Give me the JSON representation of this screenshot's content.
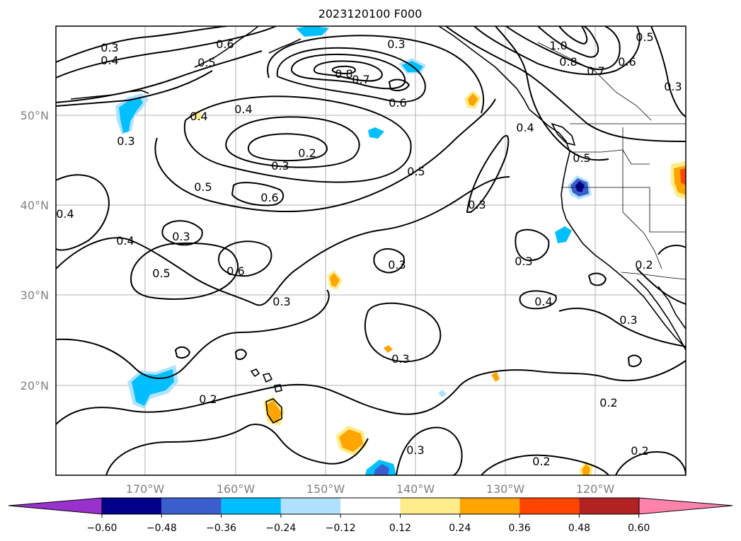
{
  "title": "2023120100 F000",
  "lat_labels": [
    {
      "id": "50n",
      "text": "50°N"
    },
    {
      "id": "40n",
      "text": "40°N"
    },
    {
      "id": "30n",
      "text": "30°N"
    },
    {
      "id": "20n",
      "text": "20°N"
    }
  ],
  "lon_labels": [
    {
      "id": "170w",
      "text": "170°W"
    },
    {
      "id": "160w",
      "text": "160°W"
    },
    {
      "id": "150w",
      "text": "150°W"
    },
    {
      "id": "140w",
      "text": "140°W"
    },
    {
      "id": "130w",
      "text": "130°W"
    },
    {
      "id": "120w",
      "text": "120°W"
    }
  ],
  "contour_labels": [
    "0.3",
    "0.4",
    "0.6",
    "0.5",
    "0.3",
    "0.8",
    "0.7",
    "0.6",
    "1.0",
    "0.8",
    "0.7",
    "0.6",
    "0.5",
    "0.3",
    "0.4",
    "0.4",
    "0.4",
    "0.3",
    "0.3",
    "0.2",
    "0.5",
    "0.5",
    "0.6",
    "0.3",
    "0.4",
    "0.3",
    "0.4",
    "0.5",
    "0.6",
    "0.5",
    "0.3",
    "0.3",
    "0.2",
    "0.4",
    "0.3",
    "0.3",
    "0.3",
    "0.2",
    "0.2",
    "0.3",
    "0.2",
    "0.2"
  ],
  "colorbar": {
    "ticks": [
      "−0.60",
      "−0.48",
      "−0.36",
      "−0.24",
      "−0.12",
      "0.12",
      "0.24",
      "0.36",
      "0.48",
      "0.60"
    ],
    "colors": {
      "under": "#9932cc",
      "bins": [
        "#00008b",
        "#3a5fcd",
        "#00bfff",
        "#b0e2ff",
        "#ffffff",
        "#ffec8b",
        "#ffa500",
        "#ff4500",
        "#b22222"
      ],
      "over": "#ff82ab"
    }
  },
  "chart_data": {
    "type": "contour_map",
    "title": "2023120100 F000",
    "lon_range": [
      -180,
      -110
    ],
    "lat_range": [
      10,
      60
    ],
    "grid": true,
    "contour_levels": [
      0.2,
      0.3,
      0.4,
      0.5,
      0.6,
      0.7,
      0.8,
      1.0
    ],
    "shading_levels": [
      -0.6,
      -0.48,
      -0.36,
      -0.24,
      -0.12,
      0.12,
      0.24,
      0.36,
      0.48,
      0.6
    ],
    "colorbar_extend": "both",
    "colorbar_placement": "bottom"
  }
}
